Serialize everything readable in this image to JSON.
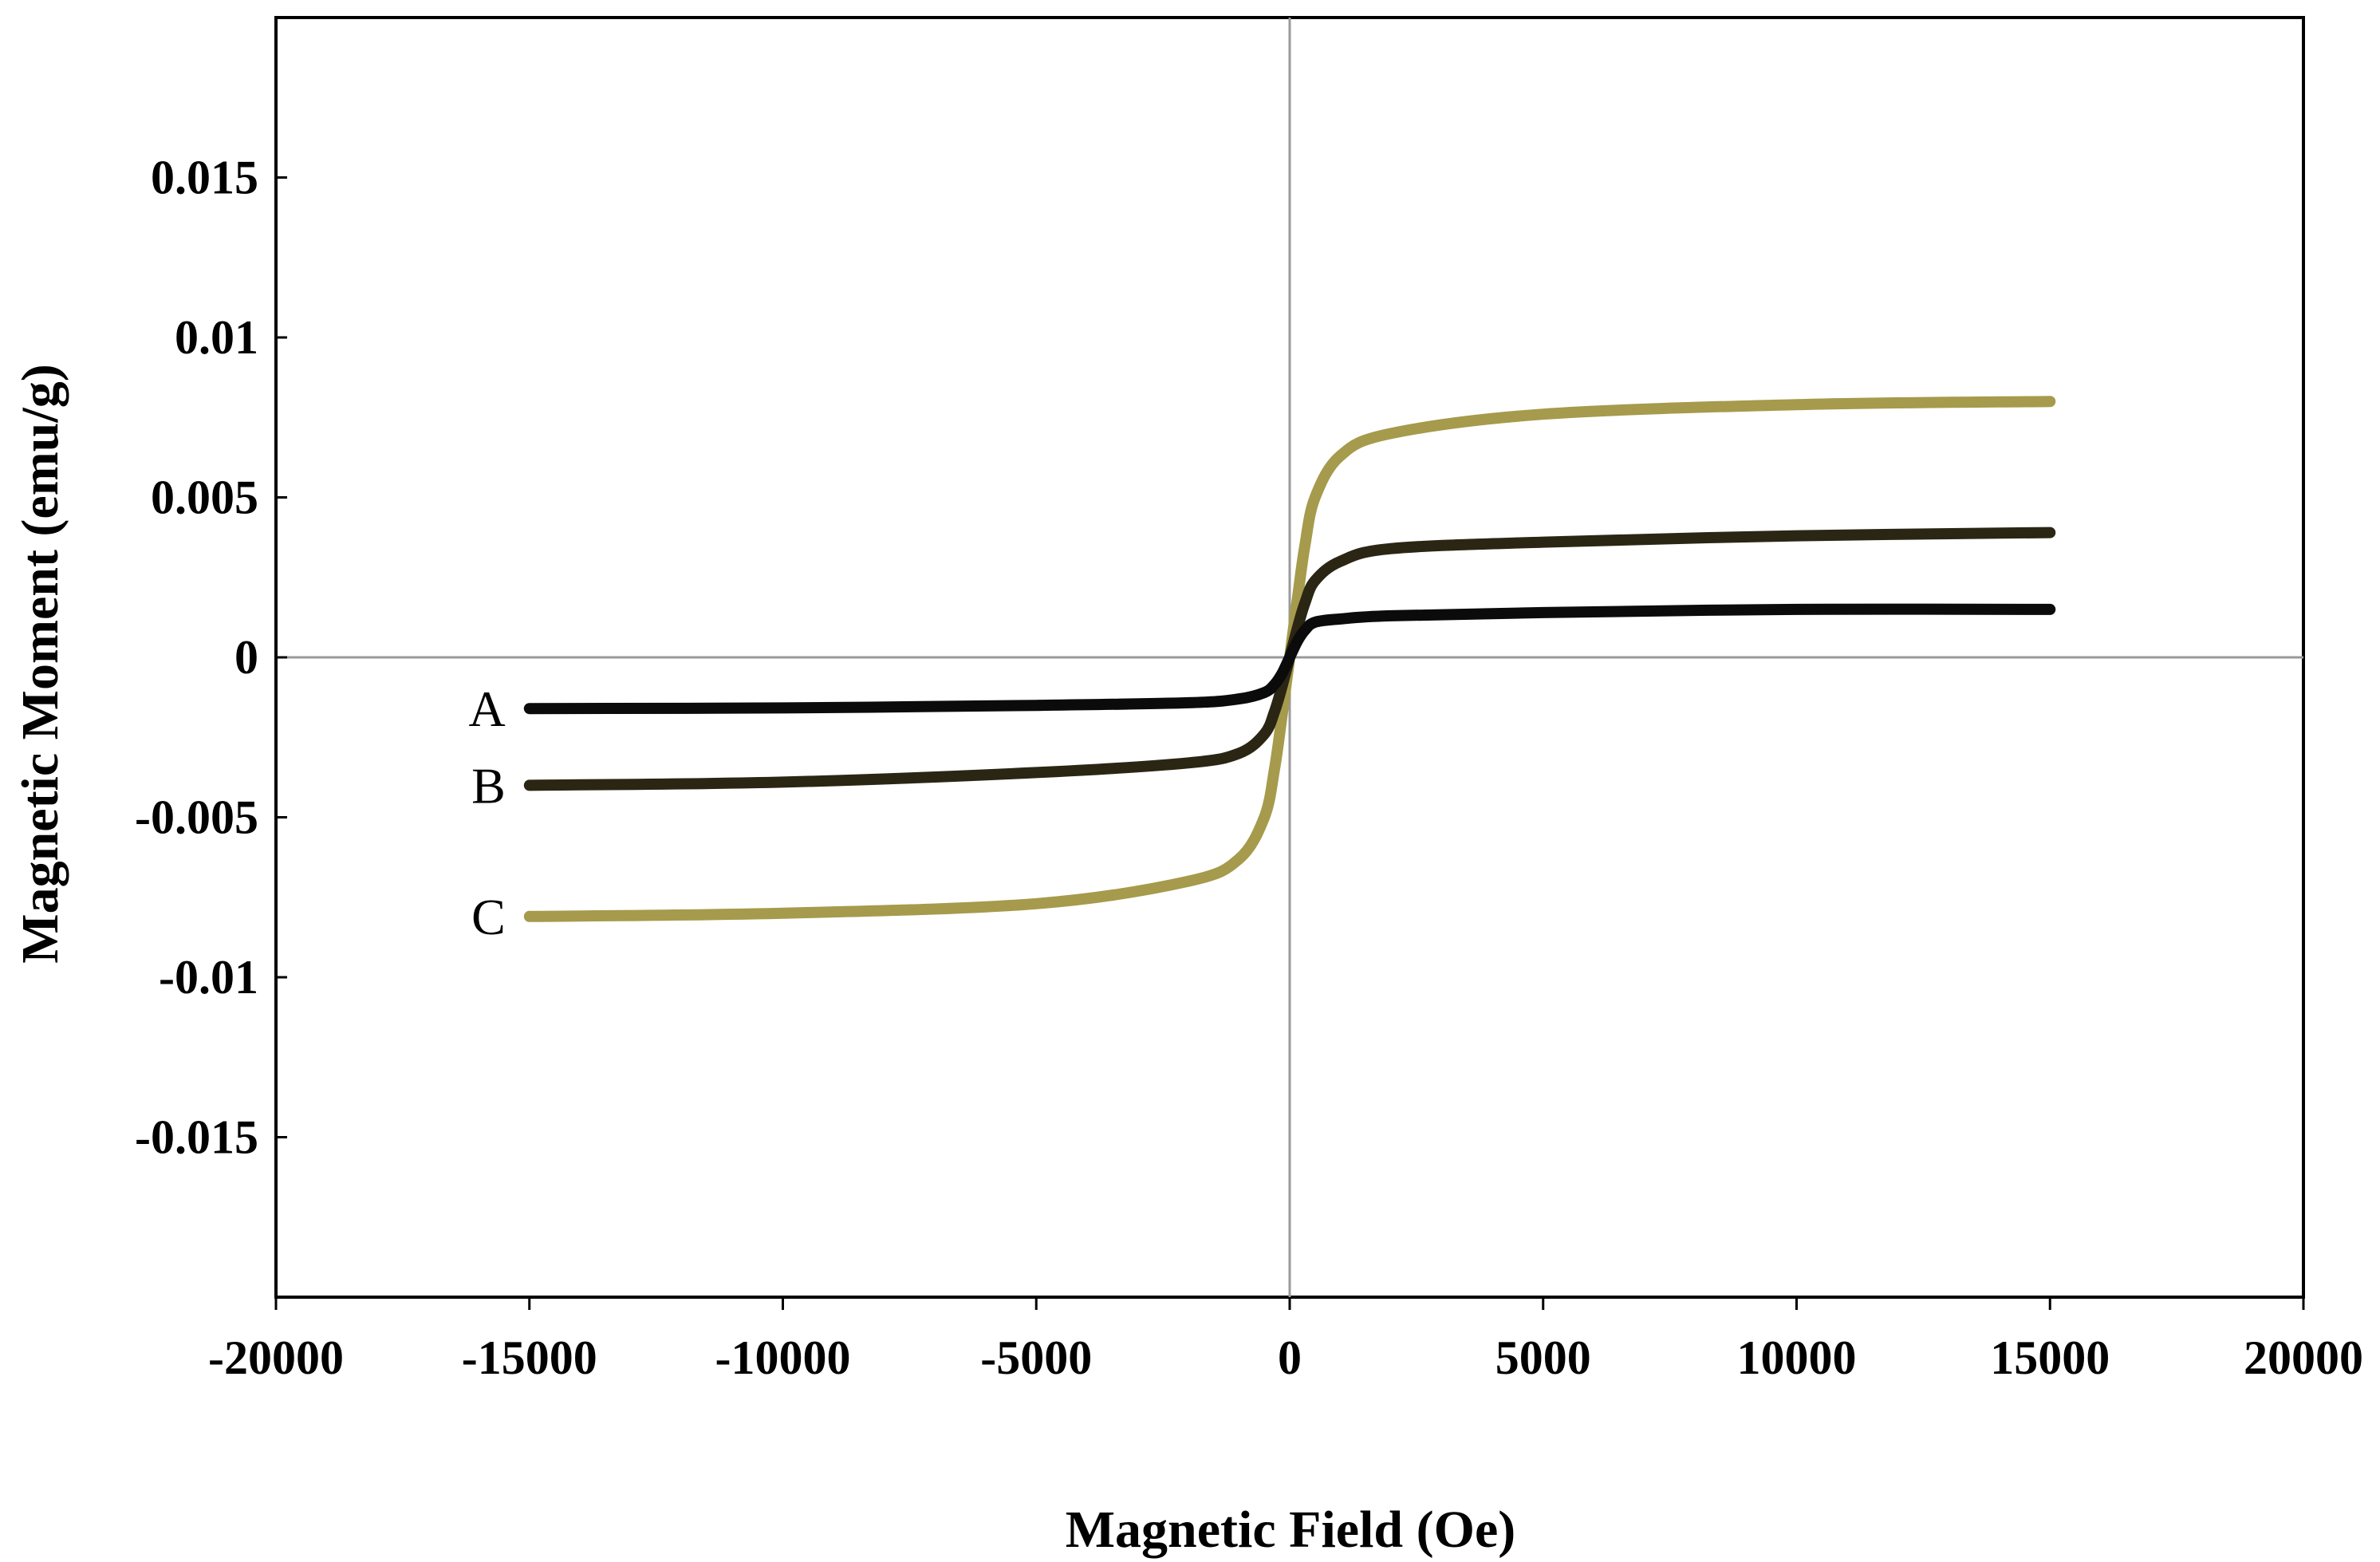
{
  "chart_data": {
    "type": "line",
    "title": "",
    "xlabel": "Magnetic Field (Oe)",
    "ylabel": "Magnetic Moment (emu/g)",
    "xlim": [
      -20000,
      20000
    ],
    "ylim": [
      -0.02,
      0.02
    ],
    "x_ticks": [
      -20000,
      -15000,
      -10000,
      -5000,
      0,
      5000,
      10000,
      15000,
      20000
    ],
    "x_tick_labels": [
      "-20000",
      "-15000",
      "-10000",
      "-5000",
      "0",
      "5000",
      "10000",
      "15000",
      "20000"
    ],
    "y_ticks": [
      0.015,
      0.01,
      0.005,
      0,
      -0.005,
      -0.01,
      -0.015
    ],
    "y_tick_labels": [
      "0.015",
      "0.01",
      "0.005",
      "0",
      "-0.005",
      "-0.01",
      "-0.015"
    ],
    "grid": false,
    "zero_lines": true,
    "x": [
      -15000,
      -10000,
      -5000,
      -2000,
      -1000,
      -500,
      -300,
      -150,
      0,
      150,
      300,
      500,
      1000,
      2000,
      5000,
      10000,
      15000
    ],
    "series": [
      {
        "name": "A",
        "label_side": "left",
        "color": "#0b0b0b",
        "values": [
          -0.0016,
          -0.00158,
          -0.0015,
          -0.00142,
          -0.0013,
          -0.0011,
          -0.00085,
          -0.0005,
          0,
          0.0005,
          0.00085,
          0.0011,
          0.0012,
          0.0013,
          0.0014,
          0.0015,
          0.0015
        ]
      },
      {
        "name": "B",
        "label_side": "left",
        "color": "#2b2614",
        "values": [
          -0.004,
          -0.0039,
          -0.0036,
          -0.0033,
          -0.003,
          -0.0024,
          -0.0017,
          -0.0009,
          0,
          0.0009,
          0.0017,
          0.0024,
          0.003,
          0.0034,
          0.0036,
          0.0038,
          0.0039
        ]
      },
      {
        "name": "C",
        "label_side": "left",
        "color": "#a69a4c",
        "values": [
          -0.0081,
          -0.008,
          -0.0077,
          -0.007,
          -0.0063,
          -0.005,
          -0.0035,
          -0.0018,
          0,
          0.0018,
          0.0035,
          0.005,
          0.0063,
          0.007,
          0.0076,
          0.0079,
          0.008
        ]
      }
    ]
  }
}
